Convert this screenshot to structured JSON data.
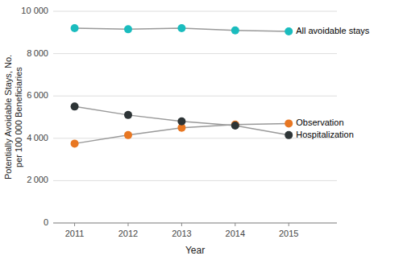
{
  "chart_data": {
    "type": "line",
    "x": [
      2011,
      2012,
      2013,
      2014,
      2015
    ],
    "series": [
      {
        "name": "All avoidable stays",
        "color": "#1ABCBE",
        "values": [
          9200,
          9150,
          9200,
          9100,
          9050
        ]
      },
      {
        "name": "Observation",
        "color": "#E87722",
        "values": [
          3750,
          4150,
          4500,
          4650,
          4700
        ]
      },
      {
        "name": "Hospitalization",
        "color": "#2d3436",
        "values": [
          5500,
          5100,
          4800,
          4600,
          4150
        ]
      }
    ],
    "x_label": "Year",
    "y_label": "Potentially Avoidable Stays, No.\nper 100 000 Beneficiaries",
    "xlim": [
      2010.6,
      2015.9
    ],
    "xticks": [
      2011,
      2012,
      2013,
      2014,
      2015
    ],
    "ylim": [
      0,
      10000
    ],
    "yticks": [
      0,
      {
        "value": 2000,
        "label": "2 000"
      },
      {
        "value": 4000,
        "label": "4 000"
      },
      {
        "value": 6000,
        "label": "6 000"
      },
      {
        "value": 8000,
        "label": "8 000"
      },
      {
        "value": 10000,
        "label": "10 000"
      }
    ],
    "grid": true,
    "marker": "circle"
  }
}
